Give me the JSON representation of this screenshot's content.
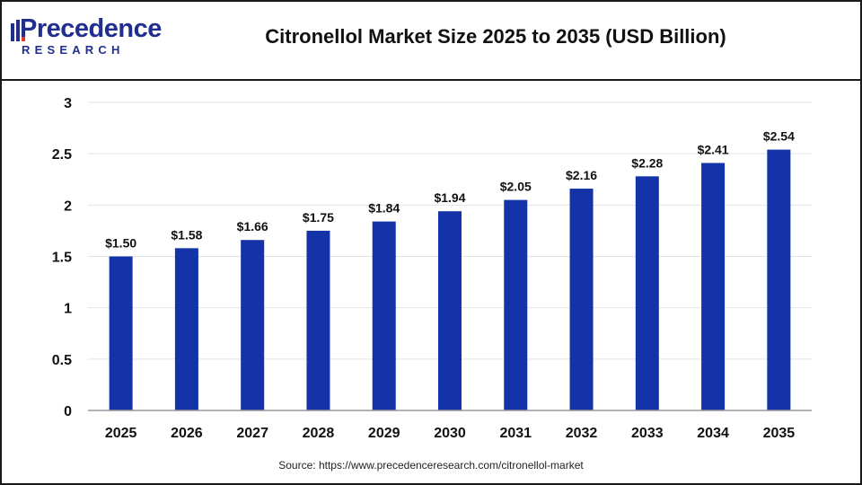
{
  "header": {
    "title": "Citronellol Market Size 2025 to 2035 (USD Billion)",
    "logo_top": "Precedence",
    "logo_bottom": "RESEARCH"
  },
  "footer": {
    "source": "Source: https://www.precedenceresearch.com/citronellol-market"
  },
  "colors": {
    "bar": "#1433a8",
    "grid": "#e3e3e3",
    "axis": "#999999",
    "text": "#111111",
    "brand": "#1f2e8f"
  },
  "chart_data": {
    "type": "bar",
    "categories": [
      "2025",
      "2026",
      "2027",
      "2028",
      "2029",
      "2030",
      "2031",
      "2032",
      "2033",
      "2034",
      "2035"
    ],
    "values": [
      1.5,
      1.58,
      1.66,
      1.75,
      1.84,
      1.94,
      2.05,
      2.16,
      2.28,
      2.41,
      2.54
    ],
    "data_labels": [
      "$1.50",
      "$1.58",
      "$1.66",
      "$1.75",
      "$1.84",
      "$1.94",
      "$2.05",
      "$2.16",
      "$2.28",
      "$2.41",
      "$2.54"
    ],
    "yticks": [
      0,
      0.5,
      1,
      1.5,
      2,
      2.5,
      3
    ],
    "ytick_labels": [
      "0",
      "0.5",
      "1",
      "1.5",
      "2",
      "2.5",
      "3"
    ],
    "ylim": [
      0,
      3
    ],
    "grid": true,
    "legend": "none"
  }
}
